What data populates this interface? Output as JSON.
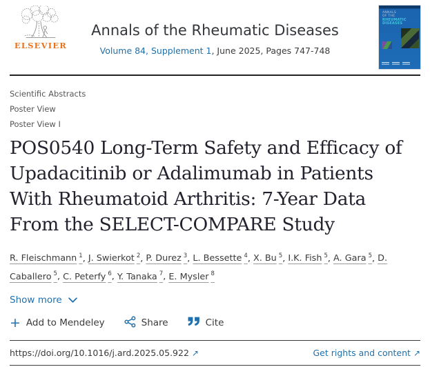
{
  "publisher": {
    "name": "ELSEVIER"
  },
  "journal": {
    "title": "Annals of the Rheumatic Diseases",
    "volume_link": "Volume 84, Supplement 1",
    "issue_suffix": ", June 2025, Pages 747-748",
    "cover_lines": [
      "ANNALS",
      "OF THE",
      "RHEUMATIC",
      "DISEASES"
    ]
  },
  "breadcrumbs": [
    "Scientific Abstracts",
    "Poster View",
    "Poster View I"
  ],
  "article": {
    "title_lines": [
      "POS0540 Long-Term Safety and Efficacy of",
      "Upadacitinib or Adalimumab in Patients",
      "With Rheumatoid Arthritis: 7-Year Data",
      "From the SELECT-COMPARE Study"
    ],
    "authors": [
      {
        "name": "R. Fleischmann",
        "sup": "1"
      },
      {
        "name": "J. Swierkot",
        "sup": "2"
      },
      {
        "name": "P. Durez",
        "sup": "3"
      },
      {
        "name": "L. Bessette",
        "sup": "4"
      },
      {
        "name": "X. Bu",
        "sup": "5"
      },
      {
        "name": "I.K. Fish",
        "sup": "5"
      },
      {
        "name": "A. Gara",
        "sup": "5"
      },
      {
        "name": "D. Caballero",
        "sup": "5"
      },
      {
        "name": "C. Peterfy",
        "sup": "6"
      },
      {
        "name": "Y. Tanaka",
        "sup": "7"
      },
      {
        "name": "E. Mysler",
        "sup": "8"
      }
    ],
    "show_more_label": "Show more"
  },
  "actions": {
    "mendeley_label": "Add to Mendeley",
    "share_label": "Share",
    "cite_label": "Cite"
  },
  "links": {
    "doi": "https://doi.org/10.1016/j.ard.2025.05.922",
    "rights_label": "Get rights and content"
  },
  "icons": {
    "external_link": "↗",
    "plus": "+"
  },
  "colors": {
    "link_blue": "#1f70ad",
    "elsevier_orange": "#e8731d",
    "cover_blue": "#1b63ae",
    "cover_cyan": "#3fc6da",
    "title_text": "#22222e",
    "muted_gray": "#565656"
  }
}
